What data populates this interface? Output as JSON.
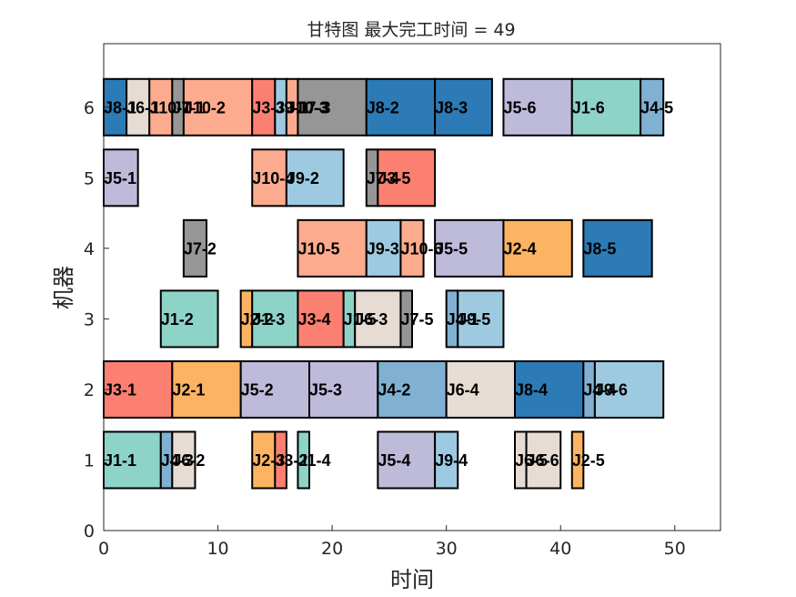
{
  "chart_data": {
    "type": "gantt",
    "title": "甘特图 最大完工时间 = 49",
    "xlabel": "时间",
    "ylabel": "机器",
    "xlim": [
      0,
      54
    ],
    "ylim": [
      0,
      6.9
    ],
    "xticks": [
      "0",
      "10",
      "20",
      "30",
      "40",
      "50"
    ],
    "yticks": [
      "0",
      "1",
      "2",
      "3",
      "4",
      "5",
      "6"
    ],
    "grid": false,
    "job_colors": {
      "J1": "#8dd3c7",
      "J2": "#fdb462",
      "J3": "#fb8072",
      "J4": "#80b1d3",
      "J5": "#bebada",
      "J6": "#e6dcd3",
      "J7": "#969696",
      "J8": "#2c7bb6",
      "J9": "#9ecae1",
      "J10": "#fcab8f"
    },
    "tasks": [
      {
        "machine": 1,
        "start": 0,
        "end": 5,
        "job": "J1",
        "label": "J1-1"
      },
      {
        "machine": 1,
        "start": 5,
        "end": 6,
        "job": "J4",
        "label": "J4-3"
      },
      {
        "machine": 1,
        "start": 6,
        "end": 8,
        "job": "J6",
        "label": "J6-2"
      },
      {
        "machine": 1,
        "start": 13,
        "end": 15,
        "job": "J2",
        "label": "J2-3"
      },
      {
        "machine": 1,
        "start": 15,
        "end": 16,
        "job": "J3",
        "label": "J3-2"
      },
      {
        "machine": 1,
        "start": 17,
        "end": 18,
        "job": "J1",
        "label": "J1-4"
      },
      {
        "machine": 1,
        "start": 24,
        "end": 29,
        "job": "J5",
        "label": "J5-4"
      },
      {
        "machine": 1,
        "start": 29,
        "end": 31,
        "job": "J9",
        "label": "J9-4"
      },
      {
        "machine": 1,
        "start": 36,
        "end": 37,
        "job": "J6",
        "label": "J6-5"
      },
      {
        "machine": 1,
        "start": 37,
        "end": 40,
        "job": "J6",
        "label": "J6-6"
      },
      {
        "machine": 1,
        "start": 41,
        "end": 42,
        "job": "J2",
        "label": "J2-5"
      },
      {
        "machine": 2,
        "start": 0,
        "end": 6,
        "job": "J3",
        "label": "J3-1"
      },
      {
        "machine": 2,
        "start": 6,
        "end": 12,
        "job": "J2",
        "label": "J2-1"
      },
      {
        "machine": 2,
        "start": 12,
        "end": 18,
        "job": "J5",
        "label": "J5-2"
      },
      {
        "machine": 2,
        "start": 18,
        "end": 24,
        "job": "J5",
        "label": "J5-3"
      },
      {
        "machine": 2,
        "start": 24,
        "end": 30,
        "job": "J4",
        "label": "J4-2"
      },
      {
        "machine": 2,
        "start": 30,
        "end": 36,
        "job": "J6",
        "label": "J6-4"
      },
      {
        "machine": 2,
        "start": 36,
        "end": 42,
        "job": "J8",
        "label": "J8-4"
      },
      {
        "machine": 2,
        "start": 42,
        "end": 43,
        "job": "J4",
        "label": "J4-4"
      },
      {
        "machine": 2,
        "start": 43,
        "end": 49,
        "job": "J9",
        "label": "J9-6"
      },
      {
        "machine": 3,
        "start": 5,
        "end": 10,
        "job": "J1",
        "label": "J1-2"
      },
      {
        "machine": 3,
        "start": 12,
        "end": 13,
        "job": "J2",
        "label": "J2-2"
      },
      {
        "machine": 3,
        "start": 13,
        "end": 17,
        "job": "J1",
        "label": "J1-3"
      },
      {
        "machine": 3,
        "start": 17,
        "end": 21,
        "job": "J3",
        "label": "J3-4"
      },
      {
        "machine": 3,
        "start": 21,
        "end": 22,
        "job": "J1",
        "label": "J1-5"
      },
      {
        "machine": 3,
        "start": 22,
        "end": 26,
        "job": "J6",
        "label": "J6-3"
      },
      {
        "machine": 3,
        "start": 26,
        "end": 27,
        "job": "J7",
        "label": "J7-5"
      },
      {
        "machine": 3,
        "start": 30,
        "end": 31,
        "job": "J4",
        "label": "J4-1"
      },
      {
        "machine": 3,
        "start": 31,
        "end": 35,
        "job": "J9",
        "label": "J9-5"
      },
      {
        "machine": 4,
        "start": 7,
        "end": 9,
        "job": "J7",
        "label": "J7-2"
      },
      {
        "machine": 4,
        "start": 17,
        "end": 23,
        "job": "J10",
        "label": "J10-5"
      },
      {
        "machine": 4,
        "start": 23,
        "end": 26,
        "job": "J9",
        "label": "J9-3"
      },
      {
        "machine": 4,
        "start": 26,
        "end": 28,
        "job": "J10",
        "label": "J10-6"
      },
      {
        "machine": 4,
        "start": 29,
        "end": 35,
        "job": "J5",
        "label": "J5-5"
      },
      {
        "machine": 4,
        "start": 35,
        "end": 41,
        "job": "J2",
        "label": "J2-4"
      },
      {
        "machine": 4,
        "start": 42,
        "end": 48,
        "job": "J8",
        "label": "J8-5"
      },
      {
        "machine": 5,
        "start": 0,
        "end": 3,
        "job": "J5",
        "label": "J5-1"
      },
      {
        "machine": 5,
        "start": 13,
        "end": 16,
        "job": "J10",
        "label": "J10-4"
      },
      {
        "machine": 5,
        "start": 16,
        "end": 21,
        "job": "J9",
        "label": "J9-2"
      },
      {
        "machine": 5,
        "start": 23,
        "end": 24,
        "job": "J7",
        "label": "J7-4"
      },
      {
        "machine": 5,
        "start": 24,
        "end": 29,
        "job": "J3",
        "label": "J3-5"
      },
      {
        "machine": 6,
        "start": 0,
        "end": 2,
        "job": "J8",
        "label": "J8-1"
      },
      {
        "machine": 6,
        "start": 2,
        "end": 4,
        "job": "J6",
        "label": "J6-1"
      },
      {
        "machine": 6,
        "start": 4,
        "end": 6,
        "job": "J10",
        "label": "J10-1"
      },
      {
        "machine": 6,
        "start": 6,
        "end": 7,
        "job": "J7",
        "label": "J7-1"
      },
      {
        "machine": 6,
        "start": 7,
        "end": 13,
        "job": "J10",
        "label": "J10-2"
      },
      {
        "machine": 6,
        "start": 13,
        "end": 15,
        "job": "J3",
        "label": "J3-3"
      },
      {
        "machine": 6,
        "start": 15,
        "end": 16,
        "job": "J9",
        "label": "J9-1"
      },
      {
        "machine": 6,
        "start": 16,
        "end": 17,
        "job": "J10",
        "label": "J10-3"
      },
      {
        "machine": 6,
        "start": 17,
        "end": 23,
        "job": "J7",
        "label": "J7-3"
      },
      {
        "machine": 6,
        "start": 23,
        "end": 29,
        "job": "J8",
        "label": "J8-2"
      },
      {
        "machine": 6,
        "start": 29,
        "end": 34,
        "job": "J8",
        "label": "J8-3"
      },
      {
        "machine": 6,
        "start": 35,
        "end": 41,
        "job": "J5",
        "label": "J5-6"
      },
      {
        "machine": 6,
        "start": 41,
        "end": 47,
        "job": "J1",
        "label": "J1-6"
      },
      {
        "machine": 6,
        "start": 47,
        "end": 49,
        "job": "J4",
        "label": "J4-5"
      }
    ]
  }
}
